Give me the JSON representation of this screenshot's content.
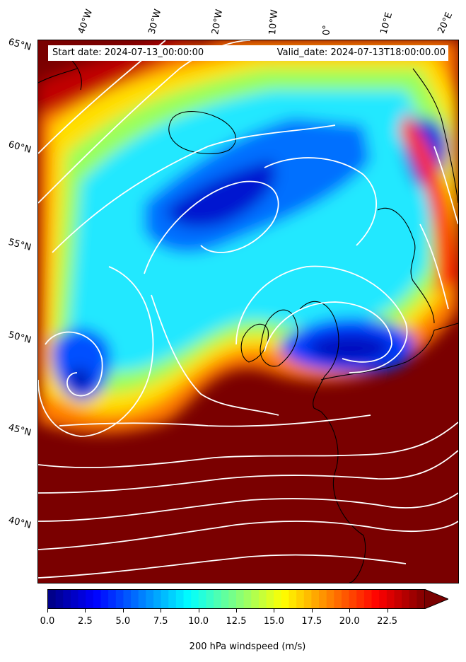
{
  "header": {
    "start_date": "Start date: 2024-07-13_00:00:00",
    "valid_date": "Valid_date: 2024-07-13T18:00:00.00"
  },
  "map": {
    "longitude_labels": [
      "40°W",
      "30°W",
      "20°W",
      "10°W",
      "0°",
      "10°E",
      "20°E"
    ],
    "latitude_labels": [
      "65°N",
      "60°N",
      "55°N",
      "50°N",
      "45°N",
      "40°N"
    ],
    "field": "200 hPa windspeed",
    "streamline_color": "#ffffff",
    "coastline_color": "#000000"
  },
  "colorbar": {
    "label": "200 hPa windspeed (m/s)",
    "ticks": [
      "0.0",
      "2.5",
      "5.0",
      "7.5",
      "10.0",
      "12.5",
      "15.0",
      "17.5",
      "20.0",
      "22.5"
    ],
    "min": 0,
    "max": 25,
    "extend": "max",
    "colormap": "jet"
  }
}
